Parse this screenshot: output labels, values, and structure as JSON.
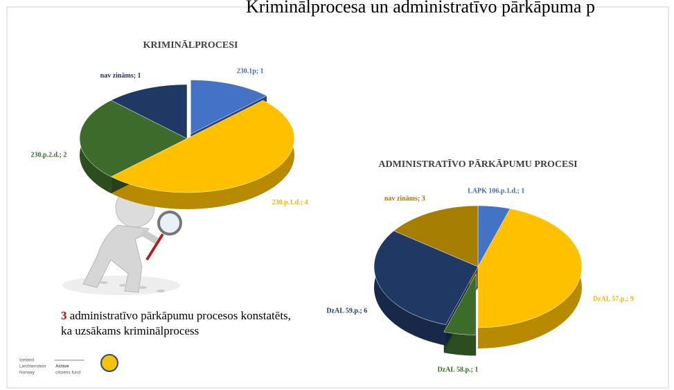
{
  "slide_title": "Kriminālprocesa un administratīvo pārkāpuma p",
  "chart_data": [
    {
      "type": "pie",
      "title": "KRIMINĀLPROCESI",
      "labels": [
        "230.1p; 1",
        "230.p.1.d.; 4",
        "230.p.2.d.; 2",
        "nav zināms; 1"
      ],
      "values": [
        1,
        4,
        2,
        1
      ],
      "colors": [
        "#4472c4",
        "#ffc000",
        "#3d6b2b",
        "#203864"
      ],
      "exploded": [
        0
      ]
    },
    {
      "type": "pie",
      "title": "ADMINISTRATĪVO PĀRKĀPUMU PROCESI",
      "labels": [
        "LAPK 106.p.1.d.; 1",
        "DzAL 57.p.; 9",
        "DzAL 58.p.; 1",
        "DzAL 59.p.; 6",
        "nav zināms; 3"
      ],
      "values": [
        1,
        9,
        1,
        6,
        3
      ],
      "colors": [
        "#4472c4",
        "#ffc000",
        "#3d6b2b",
        "#203864",
        "#a57d00"
      ],
      "exploded": [
        2
      ]
    }
  ],
  "caption": {
    "highlight": "3",
    "line1": "administratīvo pārkāpumu procesos konstatēts,",
    "line2": "ka uzsākams kriminālprocess"
  },
  "logos": {
    "countries": [
      "Iceland",
      "Liechtenstein",
      "Norway"
    ],
    "fund": [
      "Active",
      "citizens fund"
    ]
  }
}
